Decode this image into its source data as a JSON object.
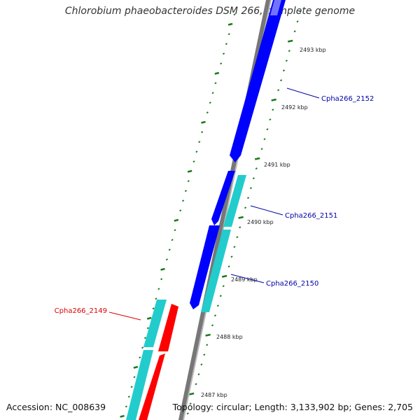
{
  "title": "Chlorobium phaeobacteroides DSM 266, complete genome",
  "accession": "Accession: NC_008639",
  "topology": "Topology: circular; Length: 3,133,902 bp; Genes: 2,705",
  "ticks": [
    "2493 kbp",
    "2492 kbp",
    "2491 kbp",
    "2490 kbp",
    "2489 kbp",
    "2488 kbp",
    "2487 kbp"
  ],
  "genes": [
    {
      "name": "Cpha266_2152",
      "color": "#0000aa"
    },
    {
      "name": "Cpha266_2151",
      "color": "#0000aa"
    },
    {
      "name": "Cpha266_2150",
      "color": "#0000aa"
    },
    {
      "name": "Cpha266_2149",
      "color": "#dd0000"
    }
  ],
  "colors": {
    "forward_strand": "#0000ff",
    "reverse_strand": "#ff0000",
    "orf": "#22cccc",
    "backbone": "#777777",
    "tick_marks": "#1a7a1a"
  }
}
